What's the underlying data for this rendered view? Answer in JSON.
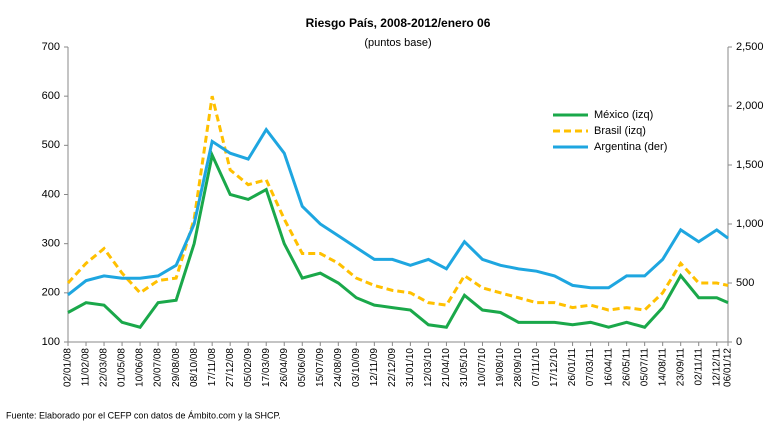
{
  "chart_data": {
    "type": "line",
    "title": "Riesgo País, 2008-2012/enero  06",
    "subtitle": "(puntos base)",
    "x": [
      "02/01/08",
      "11/02/08",
      "22/03/08",
      "01/05/08",
      "10/06/08",
      "20/07/08",
      "29/08/08",
      "08/10/08",
      "17/11/08",
      "27/12/08",
      "05/02/09",
      "17/03/09",
      "26/04/09",
      "05/06/09",
      "15/07/09",
      "24/08/09",
      "03/10/09",
      "12/11/09",
      "22/12/09",
      "31/01/10",
      "12/03/10",
      "21/04/10",
      "31/05/10",
      "10/07/10",
      "19/08/10",
      "28/09/10",
      "07/11/10",
      "17/12/10",
      "26/01/11",
      "07/03/11",
      "16/04/11",
      "26/05/11",
      "05/07/11",
      "14/08/11",
      "23/09/11",
      "02/11/11",
      "12/12/11",
      "06/01/12"
    ],
    "series": [
      {
        "name": "México (izq)",
        "color": "#1aa84a",
        "dash": false,
        "values": [
          160,
          180,
          175,
          140,
          130,
          180,
          185,
          300,
          480,
          400,
          390,
          410,
          300,
          230,
          240,
          220,
          190,
          175,
          170,
          165,
          135,
          130,
          195,
          165,
          160,
          140,
          140,
          140,
          135,
          140,
          130,
          140,
          130,
          170,
          235,
          190,
          190,
          180
        ]
      },
      {
        "name": "Brasil (izq)",
        "color": "#ffc000",
        "dash": true,
        "values": [
          220,
          260,
          290,
          240,
          200,
          225,
          230,
          350,
          600,
          450,
          420,
          430,
          350,
          280,
          280,
          260,
          230,
          215,
          205,
          200,
          180,
          175,
          235,
          210,
          200,
          190,
          180,
          180,
          170,
          175,
          165,
          170,
          165,
          200,
          260,
          220,
          220,
          215
        ]
      },
      {
        "name": "Argentina (der)",
        "color": "#1ea6e0",
        "dash": false,
        "axis": "y2",
        "values": [
          400,
          520,
          560,
          540,
          540,
          560,
          650,
          1000,
          1700,
          1600,
          1550,
          1800,
          1600,
          1150,
          1000,
          900,
          800,
          700,
          700,
          650,
          700,
          620,
          850,
          700,
          650,
          620,
          600,
          560,
          480,
          460,
          460,
          560,
          560,
          700,
          950,
          850,
          950,
          880
        ]
      }
    ],
    "ylim": [
      100,
      700
    ],
    "yticks": [
      100,
      200,
      300,
      400,
      500,
      600,
      700
    ],
    "y2lim": [
      0,
      2500
    ],
    "y2ticks": [
      0,
      500,
      {
        "value": 1000,
        "label": "1,000"
      },
      {
        "value": 1500,
        "label": "1,500"
      },
      {
        "value": 2000,
        "label": "2,000"
      },
      {
        "value": 2500,
        "label": "2,500"
      }
    ],
    "note": "Fuente: Elaborado por el CEFP con datos de Ámbito.com y la SHCP."
  }
}
